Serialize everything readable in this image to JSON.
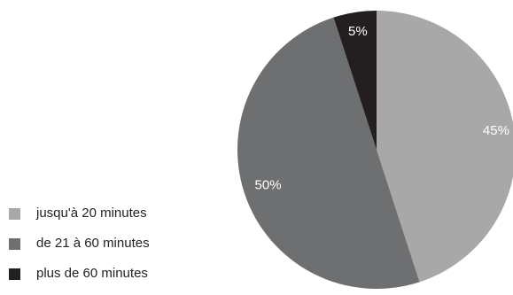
{
  "chart_data": {
    "type": "pie",
    "title": "",
    "categories": [
      "jusqu'à 20 minutes",
      "de 21 à 60 minutes",
      "plus de 60 minutes"
    ],
    "values": [
      45,
      50,
      5
    ],
    "labels": [
      "45%",
      "50%",
      "5%"
    ],
    "colors": [
      "#a8a8a9",
      "#6e6f71",
      "#231f20"
    ],
    "label_color": "#ffffff",
    "legend_position": "left-bottom"
  }
}
